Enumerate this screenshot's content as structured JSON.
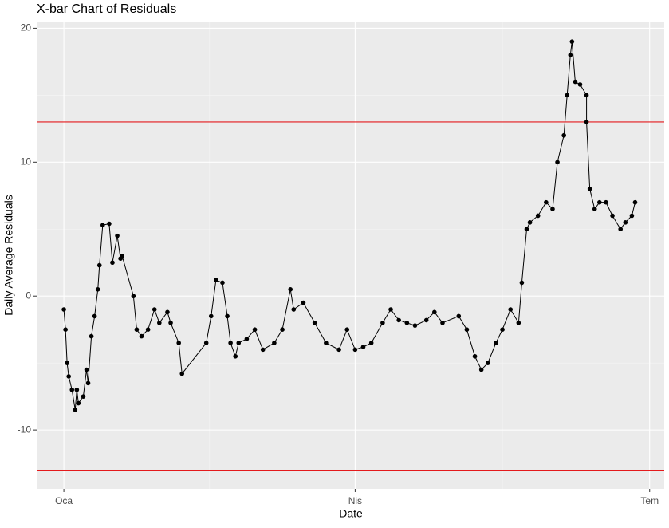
{
  "chart_data": {
    "type": "line",
    "title": "X-bar Chart of Residuals",
    "x_label": "Date",
    "y_label": "Daily Average Residuals",
    "x": [
      0,
      0.5,
      1,
      1.5,
      2.5,
      3.5,
      4,
      4.5,
      6,
      7,
      7.5,
      8.5,
      9.5,
      10.5,
      11,
      12,
      14,
      15,
      16.5,
      17.5,
      18,
      21.5,
      22.5,
      24,
      26,
      28,
      29.5,
      32,
      33,
      35.5,
      36.5,
      44,
      45.5,
      47,
      49,
      50.5,
      51.5,
      53,
      54,
      56.5,
      59,
      61.5,
      65,
      67.5,
      70,
      71,
      74,
      77.5,
      81,
      85,
      87.5,
      90,
      92.5,
      95,
      98.5,
      101,
      103.5,
      106,
      108.5,
      112,
      114.5,
      117,
      122,
      124.5,
      127,
      129,
      131,
      133.5,
      135.5,
      138,
      140.5,
      141.5,
      143,
      144,
      146.5,
      149,
      151,
      152.5,
      154.5,
      155.5,
      156.5,
      157,
      158,
      159.5,
      161.5,
      161.5,
      162.5,
      164,
      165.5,
      167.5,
      169.5,
      172,
      173.5,
      175.5,
      176.5
    ],
    "series": [
      {
        "name": "Residuals",
        "color": "#000000",
        "values": [
          -1,
          -2.5,
          -5,
          -6,
          -7,
          -8.5,
          -7,
          -8,
          -7.5,
          -5.5,
          -6.5,
          -3,
          -1.5,
          0.5,
          2.3,
          5.3,
          5.4,
          2.5,
          4.5,
          2.8,
          3,
          0,
          -2.5,
          -3,
          -2.5,
          -1,
          -2,
          -1.2,
          -2,
          -3.5,
          -5.8,
          -3.5,
          -1.5,
          1.2,
          1.0,
          -1.5,
          -3.5,
          -4.5,
          -3.5,
          -3.2,
          -2.5,
          -4,
          -3.5,
          -2.5,
          0.5,
          -1,
          -0.5,
          -2,
          -3.5,
          -4,
          -2.5,
          -4,
          -3.8,
          -3.5,
          -2,
          -1,
          -1.8,
          -2,
          -2.2,
          -1.8,
          -1.2,
          -2,
          -1.5,
          -2.5,
          -4.5,
          -5.5,
          -5,
          -3.5,
          -2.5,
          -1,
          -2,
          1,
          5,
          5.5,
          6,
          7,
          6.5,
          10,
          12,
          15,
          18,
          19,
          16,
          15.8,
          15,
          13,
          8,
          6.5,
          7,
          7,
          6,
          5,
          5.5,
          6,
          7
        ]
      }
    ],
    "xlim": [
      -8.4,
      185.5
    ],
    "xticks": [
      {
        "value": 0,
        "label": "Oca"
      },
      {
        "value": 90,
        "label": "Nis"
      },
      {
        "value": 181,
        "label": "Tem"
      }
    ],
    "ylim": [
      -14.4,
      20.5
    ],
    "yticks": [
      -10,
      0,
      10,
      20
    ],
    "control_limits": [
      13,
      -13
    ],
    "control_color": "#e41a1c",
    "grid": true
  }
}
